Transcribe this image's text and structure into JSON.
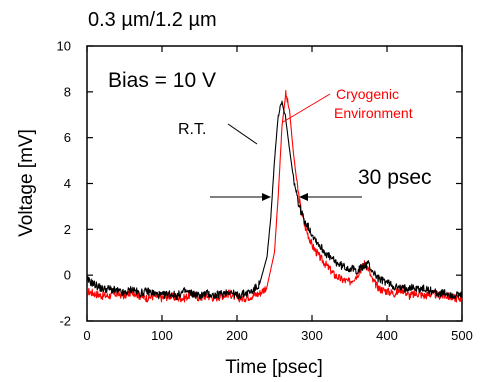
{
  "chart_data": {
    "type": "line",
    "title": "0.3 µm/1.2 µm",
    "xlabel": "Time [psec]",
    "ylabel": "Voltage [mV]",
    "xlim": [
      0,
      500
    ],
    "ylim": [
      -2,
      10
    ],
    "xticks": [
      "0",
      "100",
      "200",
      "300",
      "400",
      "500"
    ],
    "yticks": [
      "-2",
      "0",
      "2",
      "4",
      "6",
      "8",
      "10"
    ],
    "grid": false,
    "series": [
      {
        "name": "R.T.",
        "color": "#000000",
        "x": [
          0,
          10,
          20,
          30,
          40,
          50,
          60,
          70,
          80,
          90,
          100,
          110,
          120,
          130,
          140,
          150,
          160,
          170,
          180,
          190,
          200,
          210,
          220,
          230,
          240,
          245,
          250,
          255,
          260,
          265,
          270,
          275,
          280,
          285,
          290,
          300,
          310,
          320,
          330,
          340,
          350,
          360,
          370,
          375,
          380,
          390,
          400,
          410,
          420,
          430,
          440,
          450,
          460,
          470,
          480,
          490,
          500
        ],
        "y": [
          -0.2,
          -0.4,
          -0.6,
          -0.6,
          -0.7,
          -0.8,
          -0.6,
          -0.8,
          -0.7,
          -0.8,
          -0.9,
          -0.8,
          -0.9,
          -0.7,
          -0.8,
          -0.9,
          -0.8,
          -0.9,
          -0.8,
          -0.7,
          -0.9,
          -0.8,
          -0.7,
          -0.4,
          0.8,
          2.5,
          5.0,
          7.0,
          7.5,
          6.8,
          5.5,
          4.3,
          3.4,
          2.8,
          2.4,
          1.8,
          1.3,
          0.9,
          0.6,
          0.4,
          0.3,
          0.2,
          0.4,
          0.5,
          0.2,
          -0.2,
          -0.3,
          -0.5,
          -0.6,
          -0.5,
          -0.6,
          -0.6,
          -0.7,
          -0.8,
          -0.8,
          -0.9,
          -0.9
        ]
      },
      {
        "name": "Cryogenic Environment",
        "color": "#ff0000",
        "x": [
          0,
          10,
          20,
          30,
          40,
          50,
          60,
          70,
          80,
          90,
          100,
          110,
          120,
          130,
          140,
          150,
          160,
          170,
          180,
          190,
          200,
          210,
          220,
          230,
          240,
          250,
          255,
          260,
          265,
          270,
          275,
          280,
          285,
          290,
          300,
          310,
          320,
          330,
          340,
          350,
          360,
          370,
          375,
          380,
          390,
          400,
          410,
          420,
          430,
          440,
          450,
          460,
          470,
          480,
          490,
          500
        ],
        "y": [
          -0.7,
          -0.8,
          -0.9,
          -0.9,
          -0.8,
          -0.9,
          -0.7,
          -0.9,
          -1.0,
          -0.9,
          -1.0,
          -0.9,
          -1.0,
          -1.0,
          -0.8,
          -1.0,
          -0.9,
          -1.0,
          -0.9,
          -0.8,
          -1.0,
          -1.0,
          -0.9,
          -0.8,
          -0.5,
          1.0,
          3.5,
          6.5,
          7.9,
          7.2,
          5.4,
          4.0,
          2.9,
          2.2,
          1.3,
          0.8,
          0.4,
          0.0,
          -0.2,
          -0.3,
          0.0,
          0.5,
          0.3,
          -0.2,
          -0.6,
          -0.7,
          -0.8,
          -0.6,
          -0.9,
          -0.8,
          -0.9,
          -0.8,
          -0.9,
          -0.9,
          -1.0,
          -1.0
        ]
      }
    ],
    "annotations": {
      "bias": "Bias = 10 V",
      "rt_label": "R.T.",
      "cryo_line1": "Cryogenic",
      "cryo_line2": "Environment",
      "width_label": "30 psec"
    }
  }
}
